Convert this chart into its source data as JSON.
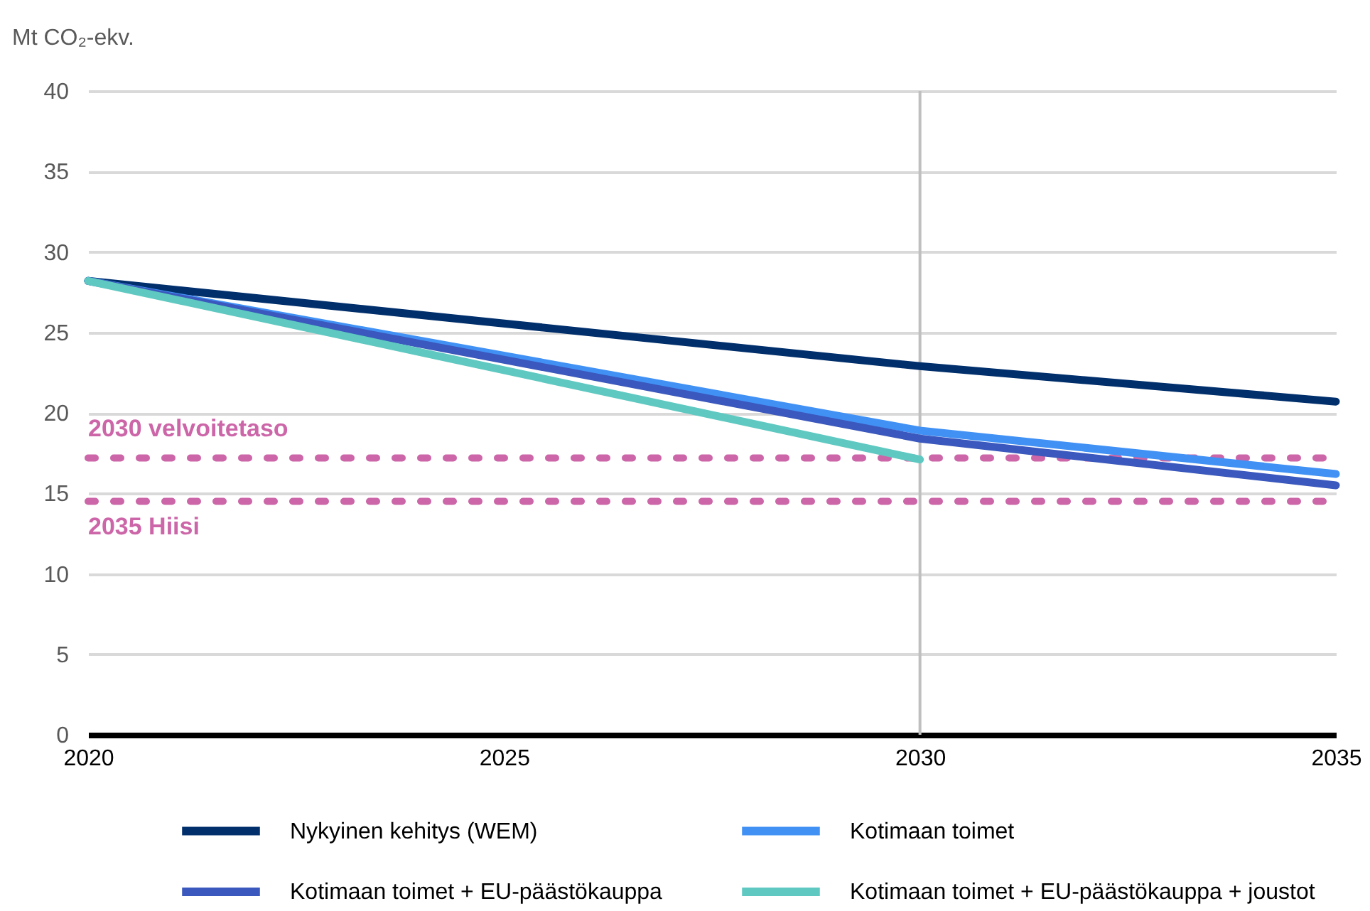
{
  "chart_data": {
    "type": "line",
    "ylabel": "Mt CO₂-ekv.",
    "x": [
      2020,
      2030,
      2035
    ],
    "series": [
      {
        "name": "Nykyinen kehitys (WEM)",
        "color": "#002f6c",
        "values": [
          28.2,
          22.9,
          20.7
        ]
      },
      {
        "name": "Kotimaan toimet",
        "color": "#4191f5",
        "values": [
          28.2,
          18.9,
          16.2
        ]
      },
      {
        "name": "Kotimaan toimet + EU-päästökauppa",
        "color": "#3a58bd",
        "values": [
          28.2,
          18.4,
          15.5
        ]
      },
      {
        "name": "Kotimaan toimet + EU-päästökauppa + joustot",
        "color": "#5fc9c1",
        "values": [
          28.2,
          17.1,
          null
        ]
      }
    ],
    "xlim": [
      2020,
      2035
    ],
    "xticks": [
      2020,
      2025,
      2030,
      2035
    ],
    "ylim": [
      0,
      40
    ],
    "yticks": [
      0,
      5,
      10,
      15,
      20,
      25,
      30,
      35,
      40
    ],
    "grid": "y",
    "legend": "bottom",
    "ref_lines": [
      {
        "axis": "y",
        "value": 17.2,
        "label": "2030 velvoitetaso",
        "color": "#cc66a8",
        "line_style": "dotted"
      },
      {
        "axis": "y",
        "value": 14.5,
        "label": "2035 Hiisi",
        "color": "#cc66a8",
        "line_style": "dotted"
      },
      {
        "axis": "x",
        "value": 2030,
        "color": "#bfbfbf",
        "line_style": "solid"
      }
    ]
  }
}
